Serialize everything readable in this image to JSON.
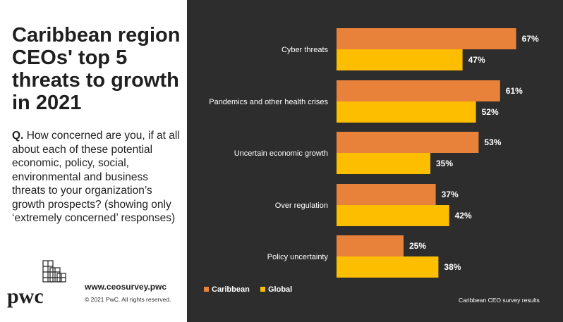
{
  "title": "Caribbean region CEOs' top 5 threats to growth in 2021",
  "question": {
    "prefix": "Q.",
    "text": "How concerned are you, if at all about each of these potential economic, policy, social, environmental and business threats to your organization’s growth prospects? (showing only ‘extremely concerned’ responses)"
  },
  "brand": {
    "logo": "pwc",
    "url": "www.ceosurvey.pwc",
    "copyright": "© 2021 PwC. All rights reserved."
  },
  "source": "Caribbean CEO survey results",
  "colors": {
    "Caribbean": "#e8823a",
    "Global": "#fdbe00",
    "panel": "#2d2d2d"
  },
  "chart_data": {
    "type": "bar",
    "orientation": "horizontal",
    "categories": [
      "Cyber threats",
      "Pandemics and other health crises",
      "Uncertain economic growth",
      "Over regulation",
      "Policy uncertainty"
    ],
    "series": [
      {
        "name": "Caribbean",
        "values": [
          67,
          61,
          53,
          37,
          25
        ],
        "labels": [
          "67%",
          "61%",
          "53%",
          "37%",
          "25%"
        ]
      },
      {
        "name": "Global",
        "values": [
          47,
          52,
          35,
          42,
          38
        ],
        "labels": [
          "47%",
          "52%",
          "35%",
          "42%",
          "38%"
        ]
      }
    ],
    "legend": {
      "position": "bottom-left",
      "entries": [
        "Caribbean",
        "Global"
      ]
    },
    "xlim": [
      0,
      100
    ],
    "grid": false
  }
}
